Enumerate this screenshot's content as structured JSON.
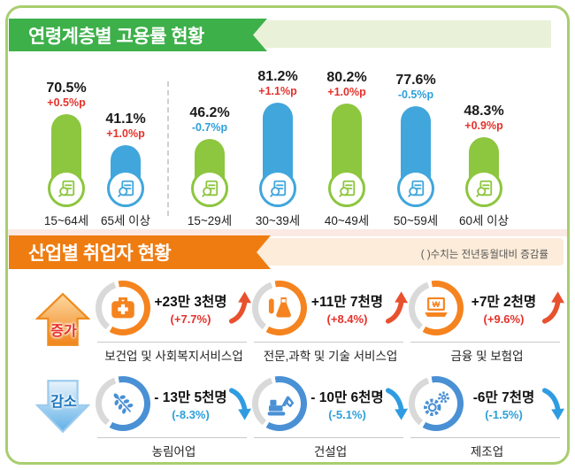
{
  "frame": {
    "border_color": "#a8ce6e"
  },
  "age_section": {
    "title": "연령계층별 고용률 현황",
    "banner_color": "#3db04a",
    "band_color": "#e9f1d8"
  },
  "industry_section": {
    "title": "산업별 취업자 현황",
    "note": "( )수치는 전년동월대비 증감률",
    "banner_color": "#ee7c11",
    "band_color": "#fcecd9"
  },
  "colors": {
    "bar_green": "#8dc63f",
    "bar_blue": "#41a6dc",
    "positive_text": "#e5312b",
    "negative_text": "#2d9fd9",
    "ring_orange": "#f5831f",
    "ring_blue": "#4a90d5",
    "ring_gray": "#d9d9d9",
    "arrow_up": "#e8512e",
    "arrow_down": "#2f9ce2"
  },
  "chart_data": [
    {
      "type": "bar",
      "title": "연령계층별 고용률 현황",
      "categories": [
        "15~64세",
        "65세 이상",
        "15~29세",
        "30~39세",
        "40~49세",
        "50~59세",
        "60세 이상"
      ],
      "values": [
        70.5,
        41.1,
        46.2,
        81.2,
        80.2,
        77.6,
        48.3
      ],
      "value_labels": [
        "70.5%",
        "41.1%",
        "46.2%",
        "81.2%",
        "80.2%",
        "77.6%",
        "48.3%"
      ],
      "change_labels": [
        "+0.5%p",
        "+1.0%p",
        "-0.7%p",
        "+1.1%p",
        "+1.0%p",
        "-0.5%p",
        "+0.9%p"
      ],
      "change_sign": [
        "up",
        "up",
        "down",
        "up",
        "up",
        "down",
        "up"
      ],
      "bar_palette": [
        "green",
        "blue",
        "green",
        "blue",
        "green",
        "blue",
        "green"
      ],
      "group_split_after_index": 1,
      "unit": "%",
      "ylim": [
        0,
        100
      ],
      "legend": "none",
      "grid": false
    },
    {
      "type": "table",
      "title": "산업별 취업자 현황",
      "note": "( )수치는 전년동월대비 증감률",
      "groups": [
        {
          "label": "증가",
          "direction": "up",
          "items": [
            {
              "industry": "보건업 및 사회복지서비스업",
              "change": "+23만 3천명",
              "rate": "(+7.7%)",
              "icon": "medical-bag-icon"
            },
            {
              "industry": "전문,과학 및 기술 서비스업",
              "change": "+11만 7천명",
              "rate": "(+8.4%)",
              "icon": "flask-icon"
            },
            {
              "industry": "금융 및 보험업",
              "change": "+7만 2천명",
              "rate": "(+9.6%)",
              "icon": "laptop-won-icon"
            }
          ]
        },
        {
          "label": "감소",
          "direction": "down",
          "items": [
            {
              "industry": "농림어업",
              "change": "- 13만 5천명",
              "rate": "(-8.3%)",
              "icon": "wheat-icon"
            },
            {
              "industry": "건설업",
              "change": "- 10만 6천명",
              "rate": "(-5.1%)",
              "icon": "excavator-icon"
            },
            {
              "industry": "제조업",
              "change": "-6만 7천명",
              "rate": "(-1.5%)",
              "icon": "gears-icon"
            }
          ]
        }
      ]
    }
  ]
}
